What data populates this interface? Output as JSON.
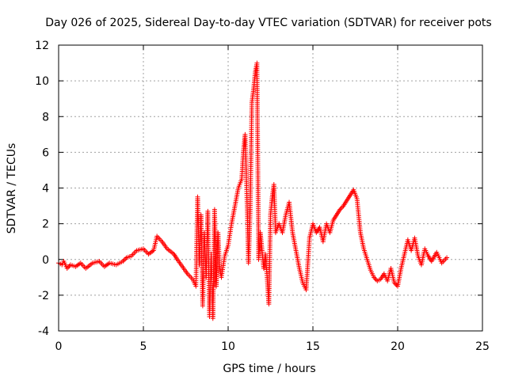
{
  "chart_data": {
    "type": "scatter",
    "title": "Day 026 of 2025, Sidereal Day-to-day VTEC variation (SDTVAR) for receiver pots",
    "xlabel": "GPS time / hours",
    "ylabel": "SDTVAR / TECUs",
    "xlim": [
      0,
      25
    ],
    "ylim": [
      -4,
      12
    ],
    "xticks": [
      0,
      5,
      10,
      15,
      20,
      25
    ],
    "yticks": [
      -4,
      -2,
      0,
      2,
      4,
      6,
      8,
      10,
      12
    ],
    "xtick_labels": [
      "0",
      "5",
      "10",
      "15",
      "20",
      "25"
    ],
    "ytick_labels": [
      "-4",
      "-2",
      "0",
      "2",
      "4",
      "6",
      "8",
      "10",
      "12"
    ],
    "grid": true,
    "marker": "+",
    "color": "#ff0000",
    "series": [
      {
        "name": "pots",
        "points": [
          [
            0.0,
            -0.2
          ],
          [
            0.2,
            -0.3
          ],
          [
            0.3,
            -0.1
          ],
          [
            0.5,
            -0.5
          ],
          [
            0.7,
            -0.3
          ],
          [
            1.0,
            -0.4
          ],
          [
            1.3,
            -0.2
          ],
          [
            1.6,
            -0.5
          ],
          [
            2.0,
            -0.2
          ],
          [
            2.4,
            -0.1
          ],
          [
            2.7,
            -0.4
          ],
          [
            3.0,
            -0.2
          ],
          [
            3.4,
            -0.3
          ],
          [
            3.8,
            -0.1
          ],
          [
            4.0,
            0.1
          ],
          [
            4.3,
            0.2
          ],
          [
            4.6,
            0.5
          ],
          [
            5.0,
            0.6
          ],
          [
            5.3,
            0.3
          ],
          [
            5.6,
            0.5
          ],
          [
            5.8,
            1.3
          ],
          [
            6.1,
            1.0
          ],
          [
            6.4,
            0.6
          ],
          [
            6.8,
            0.3
          ],
          [
            7.0,
            0.0
          ],
          [
            7.3,
            -0.4
          ],
          [
            7.6,
            -0.8
          ],
          [
            7.9,
            -1.1
          ],
          [
            8.1,
            -1.5
          ],
          [
            8.2,
            3.5
          ],
          [
            8.3,
            -0.3
          ],
          [
            8.4,
            2.5
          ],
          [
            8.5,
            -2.6
          ],
          [
            8.6,
            1.5
          ],
          [
            8.7,
            -1.0
          ],
          [
            8.8,
            2.7
          ],
          [
            8.9,
            -3.2
          ],
          [
            9.0,
            0.3
          ],
          [
            9.1,
            -3.3
          ],
          [
            9.2,
            2.8
          ],
          [
            9.3,
            -1.5
          ],
          [
            9.4,
            1.5
          ],
          [
            9.5,
            -0.5
          ],
          [
            9.6,
            -1.0
          ],
          [
            9.8,
            0.2
          ],
          [
            10.0,
            0.8
          ],
          [
            10.2,
            2.0
          ],
          [
            10.4,
            3.0
          ],
          [
            10.6,
            4.0
          ],
          [
            10.8,
            4.5
          ],
          [
            10.9,
            6.0
          ],
          [
            11.0,
            7.0
          ],
          [
            11.1,
            3.8
          ],
          [
            11.2,
            -0.2
          ],
          [
            11.3,
            2.8
          ],
          [
            11.4,
            8.8
          ],
          [
            11.5,
            9.5
          ],
          [
            11.6,
            10.5
          ],
          [
            11.7,
            11.0
          ],
          [
            11.8,
            0.0
          ],
          [
            11.9,
            1.5
          ],
          [
            12.0,
            0.5
          ],
          [
            12.1,
            -0.5
          ],
          [
            12.2,
            0.3
          ],
          [
            12.3,
            -1.0
          ],
          [
            12.4,
            -2.5
          ],
          [
            12.5,
            2.5
          ],
          [
            12.6,
            3.5
          ],
          [
            12.7,
            4.2
          ],
          [
            12.8,
            1.5
          ],
          [
            13.0,
            2.0
          ],
          [
            13.2,
            1.5
          ],
          [
            13.4,
            2.5
          ],
          [
            13.6,
            3.2
          ],
          [
            13.8,
            1.5
          ],
          [
            14.0,
            0.5
          ],
          [
            14.2,
            -0.5
          ],
          [
            14.4,
            -1.3
          ],
          [
            14.6,
            -1.7
          ],
          [
            14.8,
            1.2
          ],
          [
            15.0,
            2.0
          ],
          [
            15.2,
            1.5
          ],
          [
            15.4,
            1.8
          ],
          [
            15.6,
            1.0
          ],
          [
            15.8,
            2.0
          ],
          [
            16.0,
            1.5
          ],
          [
            16.2,
            2.2
          ],
          [
            16.4,
            2.5
          ],
          [
            16.6,
            2.8
          ],
          [
            16.8,
            3.0
          ],
          [
            17.0,
            3.3
          ],
          [
            17.2,
            3.6
          ],
          [
            17.4,
            3.9
          ],
          [
            17.6,
            3.4
          ],
          [
            17.8,
            1.5
          ],
          [
            18.0,
            0.6
          ],
          [
            18.2,
            0.0
          ],
          [
            18.4,
            -0.6
          ],
          [
            18.6,
            -1.0
          ],
          [
            18.8,
            -1.2
          ],
          [
            19.0,
            -1.1
          ],
          [
            19.2,
            -0.8
          ],
          [
            19.4,
            -1.2
          ],
          [
            19.6,
            -0.5
          ],
          [
            19.8,
            -1.3
          ],
          [
            20.0,
            -1.5
          ],
          [
            20.2,
            -0.5
          ],
          [
            20.4,
            0.3
          ],
          [
            20.6,
            1.1
          ],
          [
            20.8,
            0.5
          ],
          [
            21.0,
            1.2
          ],
          [
            21.2,
            0.2
          ],
          [
            21.4,
            -0.3
          ],
          [
            21.6,
            0.6
          ],
          [
            21.8,
            0.2
          ],
          [
            22.0,
            -0.1
          ],
          [
            22.3,
            0.4
          ],
          [
            22.6,
            -0.2
          ],
          [
            22.9,
            0.1
          ]
        ]
      }
    ]
  }
}
